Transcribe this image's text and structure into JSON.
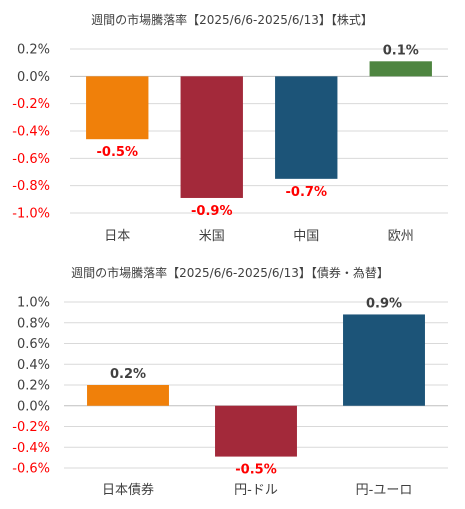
{
  "chart_data": [
    {
      "type": "bar",
      "title": "週間の市場騰落率【2025/6/6-2025/6/13】【株式】",
      "categories": [
        "日本",
        "米国",
        "中国",
        "欧州"
      ],
      "values": [
        -0.46,
        -0.89,
        -0.75,
        0.11
      ],
      "data_labels": [
        "-0.5%",
        "-0.9%",
        "-0.7%",
        "0.1%"
      ],
      "colors": [
        "#f0800a",
        "#a3293a",
        "#1c5478",
        "#4e8540"
      ],
      "ylim": [
        -1.0,
        0.2
      ],
      "yticks": [
        0.2,
        0.0,
        -0.2,
        -0.4,
        -0.6,
        -0.8,
        -1.0
      ],
      "ytick_labels": [
        "0.2%",
        "0.0%",
        "-0.2%",
        "-0.4%",
        "-0.6%",
        "-0.8%",
        "-1.0%"
      ],
      "grid": true,
      "negative_color": "#ff0000",
      "positive_color": "#404040"
    },
    {
      "type": "bar",
      "title": "週間の市場騰落率【2025/6/6-2025/6/13】【債券・為替】",
      "categories": [
        "日本債券",
        "円-ドル",
        "円-ユーロ"
      ],
      "values": [
        0.2,
        -0.49,
        0.88
      ],
      "data_labels": [
        "0.2%",
        "-0.5%",
        "0.9%"
      ],
      "colors": [
        "#f0800a",
        "#a3293a",
        "#1c5478"
      ],
      "ylim": [
        -0.6,
        1.0
      ],
      "yticks": [
        1.0,
        0.8,
        0.6,
        0.4,
        0.2,
        0.0,
        -0.2,
        -0.4,
        -0.6
      ],
      "ytick_labels": [
        "1.0%",
        "0.8%",
        "0.6%",
        "0.4%",
        "0.2%",
        "0.0%",
        "-0.2%",
        "-0.4%",
        "-0.6%"
      ],
      "grid": true,
      "negative_color": "#ff0000",
      "positive_color": "#404040"
    }
  ]
}
